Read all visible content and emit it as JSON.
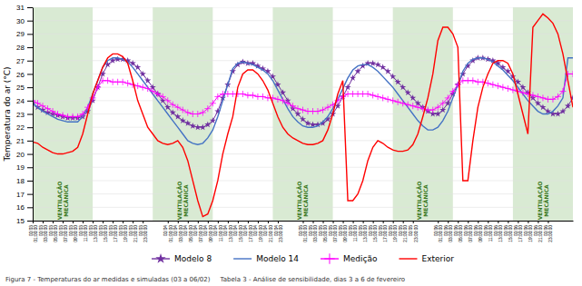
{
  "chart_data": {
    "type": "line",
    "ylabel": "Temperatura do ar (°C)",
    "ylim": [
      15,
      31
    ],
    "yticks": [
      15,
      16,
      17,
      18,
      19,
      20,
      21,
      22,
      23,
      24,
      25,
      26,
      27,
      28,
      29,
      30,
      31
    ],
    "grid": true,
    "legend": "bottom",
    "categories": [
      "02/03\n01:00:00",
      null,
      "02/03\n03:00:00",
      null,
      "02/03\n05:00:00",
      null,
      "02/03\n07:00:00",
      null,
      "02/03\n09:00:00",
      null,
      "02/03\n11:00:00",
      null,
      "02/03\n13:00:00",
      null,
      "02/03\n15:00:00",
      null,
      "02/03\n17:00:00",
      null,
      "02/03\n19:00:00",
      null,
      "02/03\n21:00:00",
      null,
      "02/03\n23:00:00",
      null,
      null,
      null,
      null,
      "02/04\n01:00:00",
      null,
      "02/04\n03:00:00",
      null,
      "02/04\n05:00:00",
      null,
      "02/04\n07:00:00",
      null,
      "02/04\n09:00:00",
      null,
      "02/04\n11:00:00",
      null,
      "02/04\n13:00:00",
      null,
      "02/04\n15:00:00",
      null,
      "02/04\n17:00:00",
      null,
      "02/04\n19:00:00",
      null,
      "02/04\n21:00:00",
      null,
      "02/04\n23:00:00",
      null,
      null,
      null,
      null,
      "02/05\n01:00:00",
      null,
      "02/05\n03:00:00",
      null,
      "02/05\n05:00:00",
      null,
      "02/05\n07:00:00",
      null,
      "02/05\n09:00:00",
      null,
      "02/05\n11:00:00",
      null,
      "02/05\n13:00:00",
      null,
      "02/05\n15:00:00",
      null,
      "02/05\n17:00:00",
      null,
      "02/05\n19:00:00",
      null,
      "02/05\n21:00:00",
      null,
      "02/05\n23:00:00",
      null,
      null,
      null,
      null,
      "02/06\n01:00:00",
      null,
      "02/06\n03:00:00",
      null,
      "02/06\n05:00:00",
      null,
      "02/06\n07:00:00",
      null,
      "02/06\n09:00:00",
      null,
      "02/06\n11:00:00",
      null,
      "02/06\n13:00:00",
      null,
      "02/06\n15:00:00",
      null,
      "02/06\n17:00:00",
      null,
      "02/06\n19:00:00",
      null,
      "02/06\n21:00:00",
      null,
      "02/06\n23:00:00",
      null,
      null,
      null,
      null,
      null
    ],
    "series": [
      {
        "name": "Modelo 8",
        "color": "#7030a0",
        "marker": "star",
        "values": [
          23.8,
          23.5,
          23.3,
          23.1,
          23.0,
          22.9,
          22.8,
          22.7,
          22.7,
          22.7,
          22.8,
          23.2,
          24.0,
          25.0,
          26.0,
          26.7,
          27.0,
          27.1,
          27.1,
          27.0,
          26.8,
          26.5,
          26.0,
          25.5,
          25.0,
          24.5,
          24.0,
          23.5,
          23.1,
          22.8,
          22.5,
          22.3,
          22.1,
          22.0,
          22.0,
          22.2,
          22.5,
          23.2,
          24.2,
          25.2,
          26.2,
          26.7,
          26.9,
          26.8,
          26.8,
          26.6,
          26.4,
          26.2,
          25.8,
          25.2,
          24.6,
          24.0,
          23.4,
          23.0,
          22.6,
          22.3,
          22.2,
          22.2,
          22.3,
          22.6,
          23.0,
          23.6,
          24.3,
          25.0,
          25.7,
          26.2,
          26.6,
          26.8,
          26.8,
          26.7,
          26.5,
          26.2,
          25.8,
          25.4,
          25.0,
          24.6,
          24.2,
          23.8,
          23.5,
          23.2,
          23.0,
          23.0,
          23.3,
          23.8,
          24.5,
          25.2,
          26.0,
          26.6,
          27.0,
          27.2,
          27.2,
          27.1,
          27.0,
          26.8,
          26.5,
          26.2,
          25.8,
          25.4,
          25.0,
          24.6,
          24.2,
          23.8,
          23.5,
          23.2,
          23.0,
          23.0,
          23.2,
          23.6,
          24.2
        ]
      },
      {
        "name": "Modelo 14",
        "color": "#4472c4",
        "values": [
          23.8,
          23.5,
          23.2,
          23.0,
          22.8,
          22.6,
          22.5,
          22.4,
          22.4,
          22.4,
          22.8,
          23.5,
          24.5,
          25.5,
          26.5,
          27.0,
          27.2,
          27.2,
          27.1,
          26.9,
          26.5,
          26.0,
          25.5,
          25.0,
          24.5,
          24.0,
          23.5,
          23.0,
          22.5,
          22.0,
          21.5,
          21.0,
          20.8,
          20.7,
          20.8,
          21.2,
          21.8,
          22.8,
          24.0,
          25.2,
          26.4,
          26.8,
          26.9,
          26.8,
          26.7,
          26.5,
          26.3,
          26.0,
          25.5,
          24.8,
          24.1,
          23.4,
          22.8,
          22.4,
          22.1,
          22.0,
          22.0,
          22.1,
          22.4,
          22.8,
          23.4,
          24.1,
          24.9,
          25.7,
          26.3,
          26.6,
          26.7,
          26.7,
          26.5,
          26.2,
          25.8,
          25.4,
          25.0,
          24.5,
          24.0,
          23.5,
          23.0,
          22.5,
          22.1,
          21.8,
          21.8,
          22.0,
          22.5,
          23.2,
          24.2,
          25.2,
          26.2,
          26.8,
          27.1,
          27.2,
          27.2,
          27.1,
          26.9,
          26.6,
          26.3,
          25.9,
          25.5,
          25.0,
          24.5,
          24.0,
          23.6,
          23.2,
          23.0,
          23.0,
          23.2,
          23.6,
          24.2,
          27.2,
          27.2
        ]
      },
      {
        "name": "Medição",
        "color": "#ff00ff",
        "marker": "plus",
        "values": [
          24.0,
          23.8,
          23.6,
          23.4,
          23.2,
          23.0,
          22.9,
          22.8,
          22.8,
          22.8,
          23.0,
          23.5,
          24.2,
          25.0,
          25.5,
          25.5,
          25.4,
          25.4,
          25.4,
          25.3,
          25.2,
          25.1,
          25.0,
          24.9,
          24.7,
          24.5,
          24.3,
          24.0,
          23.7,
          23.5,
          23.3,
          23.1,
          23.0,
          23.0,
          23.1,
          23.4,
          23.8,
          24.3,
          24.5,
          24.5,
          24.5,
          24.5,
          24.5,
          24.4,
          24.4,
          24.3,
          24.3,
          24.2,
          24.2,
          24.1,
          24.0,
          23.8,
          23.6,
          23.4,
          23.3,
          23.2,
          23.2,
          23.2,
          23.3,
          23.5,
          23.7,
          24.0,
          24.3,
          24.5,
          24.5,
          24.5,
          24.5,
          24.5,
          24.4,
          24.3,
          24.2,
          24.1,
          24.0,
          23.9,
          23.8,
          23.7,
          23.6,
          23.5,
          23.4,
          23.3,
          23.3,
          23.5,
          23.8,
          24.2,
          24.7,
          25.2,
          25.5,
          25.5,
          25.5,
          25.4,
          25.4,
          25.3,
          25.2,
          25.1,
          25.0,
          24.9,
          24.8,
          24.7,
          24.6,
          24.5,
          24.4,
          24.3,
          24.2,
          24.1,
          24.1,
          24.3,
          24.7,
          26.0,
          26.0
        ]
      },
      {
        "name": "Exterior",
        "color": "#ff0000",
        "values": [
          20.9,
          20.8,
          20.5,
          20.3,
          20.1,
          20.0,
          20.0,
          20.1,
          20.2,
          20.5,
          21.5,
          23.0,
          24.5,
          25.5,
          26.5,
          27.2,
          27.5,
          27.5,
          27.3,
          26.8,
          25.5,
          24.0,
          23.0,
          22.0,
          21.5,
          21.0,
          20.8,
          20.7,
          20.8,
          21.0,
          20.5,
          19.5,
          18.0,
          16.5,
          15.3,
          15.5,
          16.5,
          18.0,
          20.0,
          21.5,
          22.8,
          25.0,
          26.0,
          26.3,
          26.3,
          26.0,
          25.5,
          24.8,
          23.8,
          22.8,
          22.0,
          21.5,
          21.2,
          21.0,
          20.8,
          20.7,
          20.7,
          20.8,
          21.0,
          21.8,
          23.0,
          24.5,
          25.5,
          16.5,
          16.5,
          17.0,
          18.0,
          19.5,
          20.5,
          21.0,
          20.8,
          20.5,
          20.3,
          20.2,
          20.2,
          20.3,
          20.7,
          21.5,
          22.8,
          24.2,
          26.0,
          28.5,
          29.5,
          29.5,
          29.0,
          28.0,
          18.0,
          18.0,
          21.0,
          23.5,
          25.0,
          26.0,
          26.8,
          27.0,
          27.0,
          26.8,
          26.0,
          24.5,
          23.0,
          21.5,
          29.5,
          30.0,
          30.5,
          30.2,
          29.8,
          29.0,
          27.5,
          25.5,
          23.5
        ]
      }
    ],
    "bands": [
      {
        "from": 0,
        "to": 12
      },
      {
        "from": 24,
        "to": 36
      },
      {
        "from": 48,
        "to": 60
      },
      {
        "from": 72,
        "to": 84
      },
      {
        "from": 96,
        "to": 108
      }
    ],
    "band_color": "#d9ead3",
    "annotations": [
      {
        "text": "VENTILAÇÃO\nMECÂNICA",
        "x": 6,
        "y": 16.5,
        "color": "#38761d"
      },
      {
        "text": "VENTILAÇÃO\nMECÂNICA",
        "x": 30,
        "y": 16.5,
        "color": "#38761d"
      },
      {
        "text": "VENTILAÇÃO\nMECÂNICA",
        "x": 54,
        "y": 16.5,
        "color": "#38761d"
      },
      {
        "text": "VENTILAÇÃO\nMECÂNICA",
        "x": 78,
        "y": 16.5,
        "color": "#38761d"
      },
      {
        "text": "VENTILAÇÃO\nMECÂNICA",
        "x": 102,
        "y": 16.5,
        "color": "#38761d"
      }
    ],
    "caption": "Figura 7 - Temperaturas do ar medidas e simuladas (03 a 06/02)     Tabela 3 - Análise de sensibilidade, dias 3 a 6 de fevereiro"
  }
}
